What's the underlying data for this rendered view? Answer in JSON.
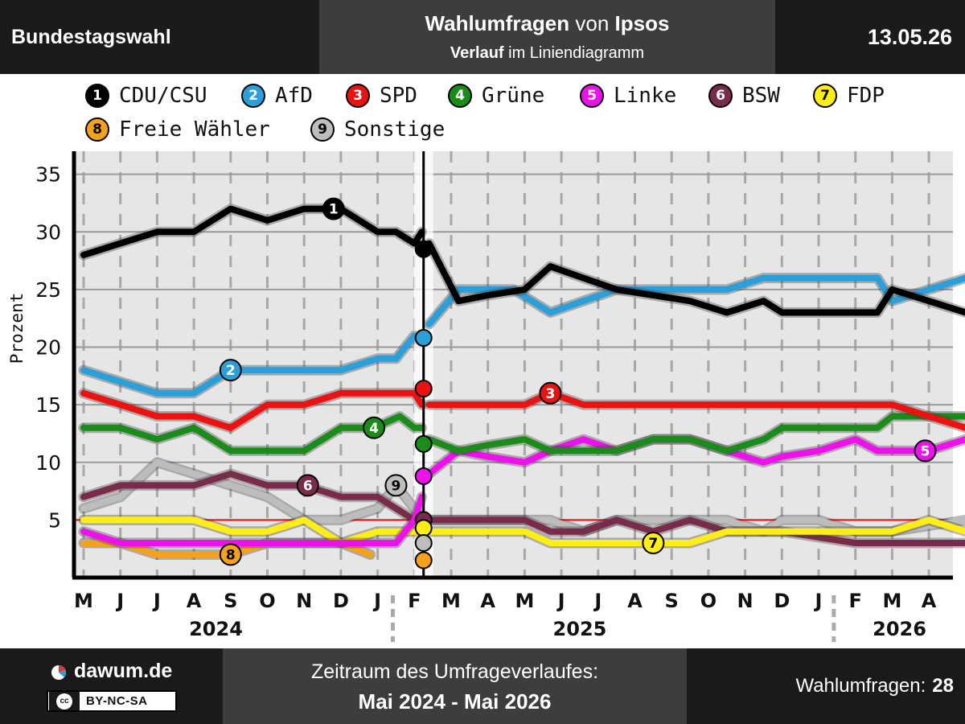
{
  "header": {
    "left": "Bundestagswahl",
    "title_bold1": "Wahlumfragen",
    "title_mid": "von",
    "title_bold2": "Ipsos",
    "subtitle_bold": "Verlauf",
    "subtitle_rest": "im Liniendiagramm",
    "date": "13.05.26"
  },
  "footer": {
    "brand": "dawum.de",
    "license": "BY-NC-SA",
    "license_badge": "cc",
    "period_label": "Zeitraum des Umfrageverlaufes:",
    "period_value": "Mai 2024 - Mai 2026",
    "count_label": "Wahlumfragen:",
    "count_value": "28"
  },
  "legend": [
    {
      "num": "1",
      "name": "CDU/CSU",
      "color": "#000000"
    },
    {
      "num": "2",
      "name": "AfD",
      "color": "#2b9fd9"
    },
    {
      "num": "3",
      "name": "SPD",
      "color": "#ee1111"
    },
    {
      "num": "4",
      "name": "Grüne",
      "color": "#1a8c1a"
    },
    {
      "num": "5",
      "name": "Linke",
      "color": "#ee11ee"
    },
    {
      "num": "6",
      "name": "BSW",
      "color": "#7a2a4a"
    },
    {
      "num": "7",
      "name": "FDP",
      "color": "#ffee11"
    },
    {
      "num": "8",
      "name": "Freie Wähler",
      "color": "#f5a11a"
    },
    {
      "num": "9",
      "name": "Sonstige",
      "color": "#bdbdbd"
    }
  ],
  "chart_data": {
    "type": "line",
    "ylabel": "Prozent",
    "ylim": [
      0,
      37
    ],
    "yticks": [
      5,
      10,
      15,
      20,
      25,
      30,
      35
    ],
    "threshold": 5,
    "grid": true,
    "x_unit": "months since May 2024",
    "xlim": [
      0,
      24
    ],
    "x_month_labels": [
      "M",
      "J",
      "J",
      "A",
      "S",
      "O",
      "N",
      "D",
      "J",
      "F",
      "M",
      "A",
      "M",
      "J",
      "J",
      "A",
      "S",
      "O",
      "N",
      "D",
      "J",
      "F",
      "M",
      "A"
    ],
    "year_labels": [
      {
        "label": "2024",
        "x": 3.6
      },
      {
        "label": "2025",
        "x": 13.5
      },
      {
        "label": "2026",
        "x": 22.2
      }
    ],
    "election_marker_x": 9.25,
    "election_results": [
      {
        "num": "1",
        "value": 28.5
      },
      {
        "num": "2",
        "value": 20.8
      },
      {
        "num": "3",
        "value": 16.4
      },
      {
        "num": "4",
        "value": 11.6
      },
      {
        "num": "5",
        "value": 8.8
      },
      {
        "num": "6",
        "value": 5.0
      },
      {
        "num": "7",
        "value": 4.3
      },
      {
        "num": "9",
        "value": 3.0
      },
      {
        "num": "8",
        "value": 1.5
      }
    ],
    "series": [
      {
        "num": "1",
        "name": "CDU/CSU",
        "color": "#000000",
        "before": [
          [
            0,
            28
          ],
          [
            1,
            29
          ],
          [
            2,
            30
          ],
          [
            3,
            30
          ],
          [
            4,
            32
          ],
          [
            5,
            31
          ],
          [
            6,
            32
          ],
          [
            7,
            32
          ],
          [
            8,
            30
          ],
          [
            8.5,
            30
          ],
          [
            9,
            29
          ],
          [
            9.2,
            30
          ]
        ],
        "after": [
          [
            9.4,
            29
          ],
          [
            10.2,
            24
          ],
          [
            11,
            24.5
          ],
          [
            12,
            25
          ],
          [
            12.7,
            27
          ],
          [
            13.6,
            26
          ],
          [
            14.5,
            25
          ],
          [
            15.5,
            24.5
          ],
          [
            16.5,
            24
          ],
          [
            17.5,
            23
          ],
          [
            18.5,
            24
          ],
          [
            19,
            23
          ],
          [
            20,
            23
          ],
          [
            21,
            23
          ],
          [
            21.6,
            23
          ],
          [
            22,
            25
          ],
          [
            23,
            24
          ],
          [
            24,
            23
          ]
        ],
        "marker": {
          "x": 6.8,
          "y": 32
        }
      },
      {
        "num": "2",
        "name": "AfD",
        "color": "#2b9fd9",
        "before": [
          [
            0,
            18
          ],
          [
            1,
            17
          ],
          [
            2,
            16
          ],
          [
            3,
            16
          ],
          [
            4,
            18
          ],
          [
            5,
            18
          ],
          [
            6,
            18
          ],
          [
            7,
            18
          ],
          [
            8,
            19
          ],
          [
            8.5,
            19
          ],
          [
            9,
            21
          ],
          [
            9.2,
            20.5
          ]
        ],
        "after": [
          [
            9.4,
            22
          ],
          [
            10.2,
            25
          ],
          [
            11,
            25
          ],
          [
            11.7,
            25
          ],
          [
            12.7,
            23
          ],
          [
            13.6,
            24
          ],
          [
            14.5,
            25
          ],
          [
            15.5,
            25
          ],
          [
            16.5,
            25
          ],
          [
            17.5,
            25
          ],
          [
            18.5,
            26
          ],
          [
            19,
            26
          ],
          [
            20,
            26
          ],
          [
            21,
            26
          ],
          [
            21.6,
            26
          ],
          [
            22,
            24
          ],
          [
            23,
            25
          ],
          [
            24,
            26
          ]
        ],
        "marker": {
          "x": 4,
          "y": 18
        }
      },
      {
        "num": "3",
        "name": "SPD",
        "color": "#ee1111",
        "before": [
          [
            0,
            16
          ],
          [
            1,
            15
          ],
          [
            2,
            14
          ],
          [
            3,
            14
          ],
          [
            4,
            13
          ],
          [
            5,
            15
          ],
          [
            6,
            15
          ],
          [
            7,
            16
          ],
          [
            8,
            16
          ],
          [
            8.5,
            16
          ],
          [
            9,
            16
          ],
          [
            9.2,
            15
          ]
        ],
        "after": [
          [
            9.4,
            15
          ],
          [
            10.2,
            15
          ],
          [
            11,
            15
          ],
          [
            12,
            15
          ],
          [
            12.7,
            16
          ],
          [
            13.6,
            15
          ],
          [
            14.5,
            15
          ],
          [
            15.5,
            15
          ],
          [
            16.5,
            15
          ],
          [
            17.5,
            15
          ],
          [
            18.5,
            15
          ],
          [
            19,
            15
          ],
          [
            20,
            15
          ],
          [
            21,
            15
          ],
          [
            21.6,
            15
          ],
          [
            22,
            15
          ],
          [
            23,
            14
          ],
          [
            24,
            13
          ]
        ],
        "marker": {
          "x": 12.7,
          "y": 16
        }
      },
      {
        "num": "4",
        "name": "Grüne",
        "color": "#1a8c1a",
        "before": [
          [
            0,
            13
          ],
          [
            1,
            13
          ],
          [
            2,
            12
          ],
          [
            3,
            13
          ],
          [
            4,
            11
          ],
          [
            5,
            11
          ],
          [
            6,
            11
          ],
          [
            7,
            13
          ],
          [
            7.9,
            13
          ],
          [
            8.6,
            14
          ],
          [
            9,
            13
          ],
          [
            9.2,
            13
          ]
        ],
        "after": [
          [
            9.4,
            12
          ],
          [
            10.2,
            11
          ],
          [
            11,
            11.5
          ],
          [
            12,
            12
          ],
          [
            12.7,
            11
          ],
          [
            13.6,
            11
          ],
          [
            14.5,
            11
          ],
          [
            15.5,
            12
          ],
          [
            16.5,
            12
          ],
          [
            17.5,
            11
          ],
          [
            18.5,
            12
          ],
          [
            19,
            13
          ],
          [
            20,
            13
          ],
          [
            21,
            13
          ],
          [
            21.6,
            13
          ],
          [
            22,
            14
          ],
          [
            23,
            14
          ],
          [
            24,
            14
          ]
        ],
        "marker": {
          "x": 7.9,
          "y": 13
        }
      },
      {
        "num": "5",
        "name": "Linke",
        "color": "#ee11ee",
        "before": [
          [
            0,
            4
          ],
          [
            1,
            3
          ],
          [
            2,
            3
          ],
          [
            3,
            3
          ],
          [
            4,
            3
          ],
          [
            5,
            3
          ],
          [
            6,
            3
          ],
          [
            7,
            3
          ],
          [
            8,
            3
          ],
          [
            8.5,
            3
          ],
          [
            9,
            5
          ],
          [
            9.2,
            7
          ]
        ],
        "after": [
          [
            9.4,
            9
          ],
          [
            10.2,
            11
          ],
          [
            11,
            10.5
          ],
          [
            12,
            10
          ],
          [
            12.7,
            11
          ],
          [
            13.6,
            12
          ],
          [
            14.5,
            11
          ],
          [
            15.5,
            12
          ],
          [
            16.5,
            12
          ],
          [
            17.5,
            11
          ],
          [
            18.5,
            10
          ],
          [
            19,
            10.5
          ],
          [
            20,
            11
          ],
          [
            21,
            12
          ],
          [
            21.6,
            11
          ],
          [
            22,
            11
          ],
          [
            23,
            11
          ],
          [
            24,
            12
          ]
        ],
        "marker": {
          "x": 22.9,
          "y": 11
        }
      },
      {
        "num": "6",
        "name": "BSW",
        "color": "#7a2a4a",
        "before": [
          [
            0,
            7
          ],
          [
            1,
            8
          ],
          [
            2,
            8
          ],
          [
            3,
            8
          ],
          [
            4,
            9
          ],
          [
            5,
            8
          ],
          [
            6,
            8
          ],
          [
            7,
            7
          ],
          [
            8,
            7
          ],
          [
            8.5,
            6
          ],
          [
            9,
            5
          ],
          [
            9.2,
            5
          ]
        ],
        "after": [
          [
            9.4,
            5
          ],
          [
            10.2,
            5
          ],
          [
            11,
            5
          ],
          [
            12,
            5
          ],
          [
            12.7,
            4
          ],
          [
            13.6,
            4
          ],
          [
            14.5,
            5
          ],
          [
            15.5,
            4
          ],
          [
            16.5,
            5
          ],
          [
            17.5,
            4
          ],
          [
            18.5,
            4
          ],
          [
            19,
            4
          ],
          [
            20,
            3.5
          ],
          [
            21,
            3
          ],
          [
            21.6,
            3
          ],
          [
            22,
            3
          ],
          [
            23,
            3
          ],
          [
            24,
            3
          ]
        ],
        "marker": {
          "x": 6.1,
          "y": 8
        }
      },
      {
        "num": "7",
        "name": "FDP",
        "color": "#ffee11",
        "before": [
          [
            0,
            5
          ],
          [
            1,
            5
          ],
          [
            2,
            5
          ],
          [
            3,
            5
          ],
          [
            4,
            4
          ],
          [
            5,
            4
          ],
          [
            6,
            5
          ],
          [
            7,
            3
          ],
          [
            8,
            4
          ],
          [
            8.5,
            4
          ],
          [
            9,
            4
          ],
          [
            9.2,
            4
          ]
        ],
        "after": [
          [
            9.4,
            4
          ],
          [
            10.2,
            4
          ],
          [
            11,
            4
          ],
          [
            12,
            4
          ],
          [
            12.7,
            3
          ],
          [
            13.6,
            3
          ],
          [
            14.5,
            3
          ],
          [
            15.5,
            3
          ],
          [
            16.5,
            3
          ],
          [
            17.5,
            4
          ],
          [
            18.5,
            4
          ],
          [
            19,
            4
          ],
          [
            20,
            4
          ],
          [
            21,
            4
          ],
          [
            21.6,
            4
          ],
          [
            22,
            4
          ],
          [
            23,
            5
          ],
          [
            24,
            4
          ]
        ],
        "marker": {
          "x": 15.5,
          "y": 3
        }
      },
      {
        "num": "8",
        "name": "Freie Wähler",
        "color": "#f5a11a",
        "before": [
          [
            0,
            3
          ],
          [
            1,
            3
          ],
          [
            2,
            2
          ],
          [
            3,
            2
          ],
          [
            4,
            2
          ],
          [
            5,
            3
          ],
          [
            6,
            3
          ],
          [
            7,
            3
          ],
          [
            7.8,
            2
          ]
        ],
        "after": [],
        "marker": {
          "x": 4,
          "y": 2
        }
      },
      {
        "num": "9",
        "name": "Sonstige",
        "color": "#bdbdbd",
        "before": [
          [
            0,
            6
          ],
          [
            1,
            7
          ],
          [
            2,
            10
          ],
          [
            3,
            9
          ],
          [
            4,
            8
          ],
          [
            5,
            7
          ],
          [
            6,
            5
          ],
          [
            7,
            5
          ],
          [
            8,
            6
          ],
          [
            8.5,
            8
          ],
          [
            9,
            6
          ],
          [
            9.2,
            5
          ]
        ],
        "after": [
          [
            9.4,
            5
          ],
          [
            10.2,
            5
          ],
          [
            11,
            5
          ],
          [
            12,
            5
          ],
          [
            12.7,
            5
          ],
          [
            13.6,
            4
          ],
          [
            14.5,
            5
          ],
          [
            15.5,
            5
          ],
          [
            16.5,
            5
          ],
          [
            17.5,
            5
          ],
          [
            18.5,
            4
          ],
          [
            19,
            5
          ],
          [
            20,
            5
          ],
          [
            21,
            4
          ],
          [
            21.6,
            4
          ],
          [
            22,
            4
          ],
          [
            23,
            4.5
          ],
          [
            24,
            5
          ]
        ],
        "marker": {
          "x": 8.5,
          "y": 8
        }
      }
    ]
  }
}
